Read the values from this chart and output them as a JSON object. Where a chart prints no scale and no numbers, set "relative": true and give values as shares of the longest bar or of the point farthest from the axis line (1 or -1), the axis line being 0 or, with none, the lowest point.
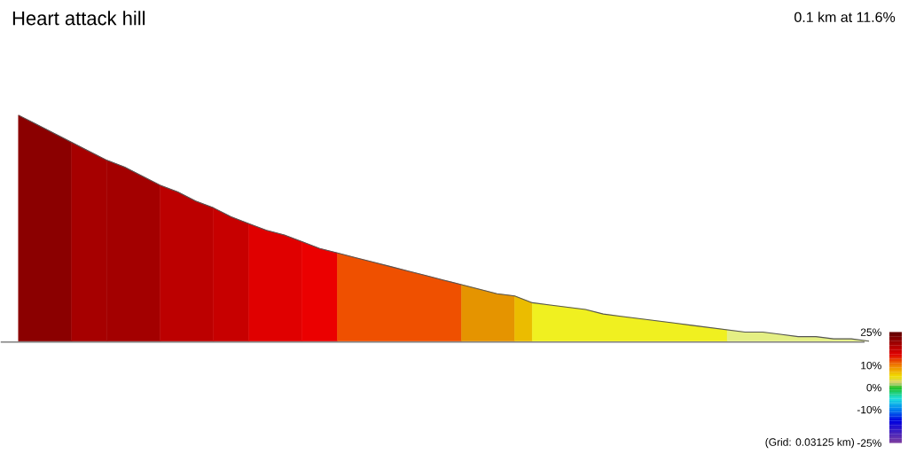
{
  "chart_data": {
    "type": "area",
    "title": "Heart attack hill",
    "subtitle": "0.1 km at 11.6%",
    "annotations": [
      "(Grid: 0.03125 km)"
    ],
    "relative": true,
    "categories": [
      null,
      null,
      null,
      null,
      null,
      null,
      null,
      null,
      null,
      null,
      null,
      null,
      null,
      null,
      null,
      null,
      null,
      null,
      null,
      null,
      null,
      null,
      null,
      null,
      null,
      null,
      null,
      null,
      null,
      null,
      null,
      null,
      null,
      null,
      null,
      null,
      null,
      null,
      null,
      null,
      null,
      null,
      null,
      null,
      null,
      null,
      null,
      null,
      null
    ],
    "series": [
      {
        "type": "line",
        "color": "#555555",
        "values": [
          1,
          0.96,
          0.92,
          0.88,
          0.84,
          0.8,
          0.77,
          0.73,
          0.69,
          0.66,
          0.62,
          0.59,
          0.55,
          0.52,
          0.49,
          0.47,
          0.44,
          0.41,
          0.39,
          0.37,
          0.35,
          0.33,
          0.31,
          0.29,
          0.27,
          0.25,
          0.23,
          0.21,
          0.2,
          0.17,
          0.16,
          0.15,
          0.14,
          0.12,
          0.11,
          0.1,
          0.09,
          0.08,
          0.07,
          0.06,
          0.05,
          0.04,
          0.04,
          0.03,
          0.02,
          0.02,
          0.01,
          0.01,
          0
        ]
      },
      {
        "color": "#8b0000",
        "values": [
          1,
          0.96,
          0.92,
          0.88,
          null,
          null,
          null,
          null,
          null,
          null,
          null,
          null,
          null,
          null,
          null,
          null,
          null,
          null,
          null,
          null,
          null,
          null,
          null,
          null,
          null,
          null,
          null,
          null,
          null,
          null,
          null,
          null,
          null,
          null,
          null,
          null,
          null,
          null,
          null,
          null,
          null,
          null,
          null,
          null,
          null,
          null,
          null,
          null,
          null
        ]
      },
      {
        "color": "#a60000",
        "values": [
          null,
          null,
          null,
          0.88,
          0.84,
          0.8,
          null,
          null,
          null,
          null,
          null,
          null,
          null,
          null,
          null,
          null,
          null,
          null,
          null,
          null,
          null,
          null,
          null,
          null,
          null,
          null,
          null,
          null,
          null,
          null,
          null,
          null,
          null,
          null,
          null,
          null,
          null,
          null,
          null,
          null,
          null,
          null,
          null,
          null,
          null,
          null,
          null,
          null,
          null
        ]
      },
      {
        "color": "#a30000",
        "values": [
          null,
          null,
          null,
          null,
          null,
          0.8,
          0.77,
          0.73,
          0.69,
          null,
          null,
          null,
          null,
          null,
          null,
          null,
          null,
          null,
          null,
          null,
          null,
          null,
          null,
          null,
          null,
          null,
          null,
          null,
          null,
          null,
          null,
          null,
          null,
          null,
          null,
          null,
          null,
          null,
          null,
          null,
          null,
          null,
          null,
          null,
          null,
          null,
          null,
          null,
          null
        ]
      },
      {
        "color": "#bc0000",
        "values": [
          null,
          null,
          null,
          null,
          null,
          null,
          null,
          null,
          0.69,
          0.66,
          0.62,
          0.59,
          null,
          null,
          null,
          null,
          null,
          null,
          null,
          null,
          null,
          null,
          null,
          null,
          null,
          null,
          null,
          null,
          null,
          null,
          null,
          null,
          null,
          null,
          null,
          null,
          null,
          null,
          null,
          null,
          null,
          null,
          null,
          null,
          null,
          null,
          null,
          null,
          null
        ]
      },
      {
        "color": "#c70000",
        "values": [
          null,
          null,
          null,
          null,
          null,
          null,
          null,
          null,
          null,
          null,
          null,
          0.59,
          0.55,
          0.52,
          null,
          null,
          null,
          null,
          null,
          null,
          null,
          null,
          null,
          null,
          null,
          null,
          null,
          null,
          null,
          null,
          null,
          null,
          null,
          null,
          null,
          null,
          null,
          null,
          null,
          null,
          null,
          null,
          null,
          null,
          null,
          null,
          null,
          null,
          null
        ]
      },
      {
        "color": "#e00000",
        "values": [
          null,
          null,
          null,
          null,
          null,
          null,
          null,
          null,
          null,
          null,
          null,
          null,
          null,
          0.52,
          0.49,
          0.47,
          0.44,
          null,
          null,
          null,
          null,
          null,
          null,
          null,
          null,
          null,
          null,
          null,
          null,
          null,
          null,
          null,
          null,
          null,
          null,
          null,
          null,
          null,
          null,
          null,
          null,
          null,
          null,
          null,
          null,
          null,
          null,
          null,
          null
        ]
      },
      {
        "color": "#eb0000",
        "values": [
          null,
          null,
          null,
          null,
          null,
          null,
          null,
          null,
          null,
          null,
          null,
          null,
          null,
          null,
          null,
          null,
          0.44,
          0.41,
          0.39,
          null,
          null,
          null,
          null,
          null,
          null,
          null,
          null,
          null,
          null,
          null,
          null,
          null,
          null,
          null,
          null,
          null,
          null,
          null,
          null,
          null,
          null,
          null,
          null,
          null,
          null,
          null,
          null,
          null,
          null
        ]
      },
      {
        "color": "#ef5000",
        "values": [
          null,
          null,
          null,
          null,
          null,
          null,
          null,
          null,
          null,
          null,
          null,
          null,
          null,
          null,
          null,
          null,
          null,
          null,
          0.39,
          0.37,
          0.35,
          0.33,
          0.31,
          0.29,
          0.27,
          0.25,
          null,
          null,
          null,
          null,
          null,
          null,
          null,
          null,
          null,
          null,
          null,
          null,
          null,
          null,
          null,
          null,
          null,
          null,
          null,
          null,
          null,
          null,
          null
        ]
      },
      {
        "color": "#e59400",
        "values": [
          null,
          null,
          null,
          null,
          null,
          null,
          null,
          null,
          null,
          null,
          null,
          null,
          null,
          null,
          null,
          null,
          null,
          null,
          null,
          null,
          null,
          null,
          null,
          null,
          null,
          0.25,
          0.23,
          0.21,
          0.2,
          null,
          null,
          null,
          null,
          null,
          null,
          null,
          null,
          null,
          null,
          null,
          null,
          null,
          null,
          null,
          null,
          null,
          null,
          null,
          null
        ]
      },
      {
        "color": "#ebbc00",
        "values": [
          null,
          null,
          null,
          null,
          null,
          null,
          null,
          null,
          null,
          null,
          null,
          null,
          null,
          null,
          null,
          null,
          null,
          null,
          null,
          null,
          null,
          null,
          null,
          null,
          null,
          null,
          null,
          null,
          0.2,
          0.17,
          null,
          null,
          null,
          null,
          null,
          null,
          null,
          null,
          null,
          null,
          null,
          null,
          null,
          null,
          null,
          null,
          null,
          null,
          null
        ]
      },
      {
        "color": "#f0f020",
        "values": [
          null,
          null,
          null,
          null,
          null,
          null,
          null,
          null,
          null,
          null,
          null,
          null,
          null,
          null,
          null,
          null,
          null,
          null,
          null,
          null,
          null,
          null,
          null,
          null,
          null,
          null,
          null,
          null,
          null,
          0.17,
          0.16,
          0.15,
          0.14,
          0.12,
          0.11,
          0.1,
          0.09,
          0.08,
          0.07,
          0.06,
          0.05,
          null,
          null,
          null,
          null,
          null,
          null,
          null,
          null
        ]
      },
      {
        "color": "#e4ef84",
        "values": [
          null,
          null,
          null,
          null,
          null,
          null,
          null,
          null,
          null,
          null,
          null,
          null,
          null,
          null,
          null,
          null,
          null,
          null,
          null,
          null,
          null,
          null,
          null,
          null,
          null,
          null,
          null,
          null,
          null,
          null,
          null,
          null,
          null,
          null,
          null,
          null,
          null,
          null,
          null,
          null,
          0.05,
          0.04,
          0.04,
          0.03,
          0.02,
          0.02,
          0.01,
          0.01,
          0
        ]
      }
    ],
    "clim": [
      -25,
      25
    ],
    "cticks": [
      {
        "value": 25,
        "label": "25%"
      },
      {
        "value": 10,
        "label": "10%"
      },
      {
        "value": 0,
        "label": "0%"
      },
      {
        "value": -10,
        "label": "-10%"
      },
      {
        "value": -25,
        "label": "-25%"
      }
    ]
  }
}
